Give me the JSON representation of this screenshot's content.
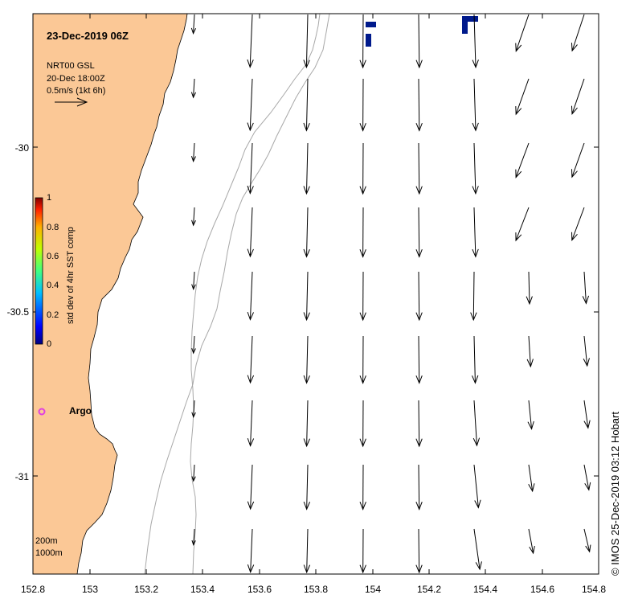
{
  "map": {
    "title": "23-Dec-2019 06Z",
    "info_lines": [
      "NRT00 GSL",
      "20-Dec 18:00Z",
      "0.5m/s (1kt 6h)"
    ],
    "site_label": "Argo",
    "contour_labels": [
      "200m",
      "1000m"
    ],
    "credit": "© IMOS 25-Dec-2019 03:12 Hobart",
    "colors": {
      "land": "#FBC896",
      "ocean": "#FFFFFF",
      "site_marker": "#E040E0",
      "sst_cells": "#001A8C",
      "isobath": "#A8A8A8"
    },
    "x_ticks": [
      "152.8",
      "153",
      "153.2",
      "153.4",
      "153.6",
      "153.8",
      "154",
      "154.2",
      "154.4",
      "154.6",
      "154.8"
    ],
    "y_ticks": [
      "-30",
      "-30.5",
      "-31"
    ],
    "colorbar": {
      "title": "std dev of 4hr SST comp",
      "ticks": [
        "1",
        "0.8",
        "0.6",
        "0.4",
        "0.2",
        "0"
      ],
      "range": [
        0,
        1
      ]
    },
    "extent": {
      "lon": [
        152.8,
        154.8
      ],
      "lat": [
        -31.3,
        -29.6
      ]
    }
  }
}
